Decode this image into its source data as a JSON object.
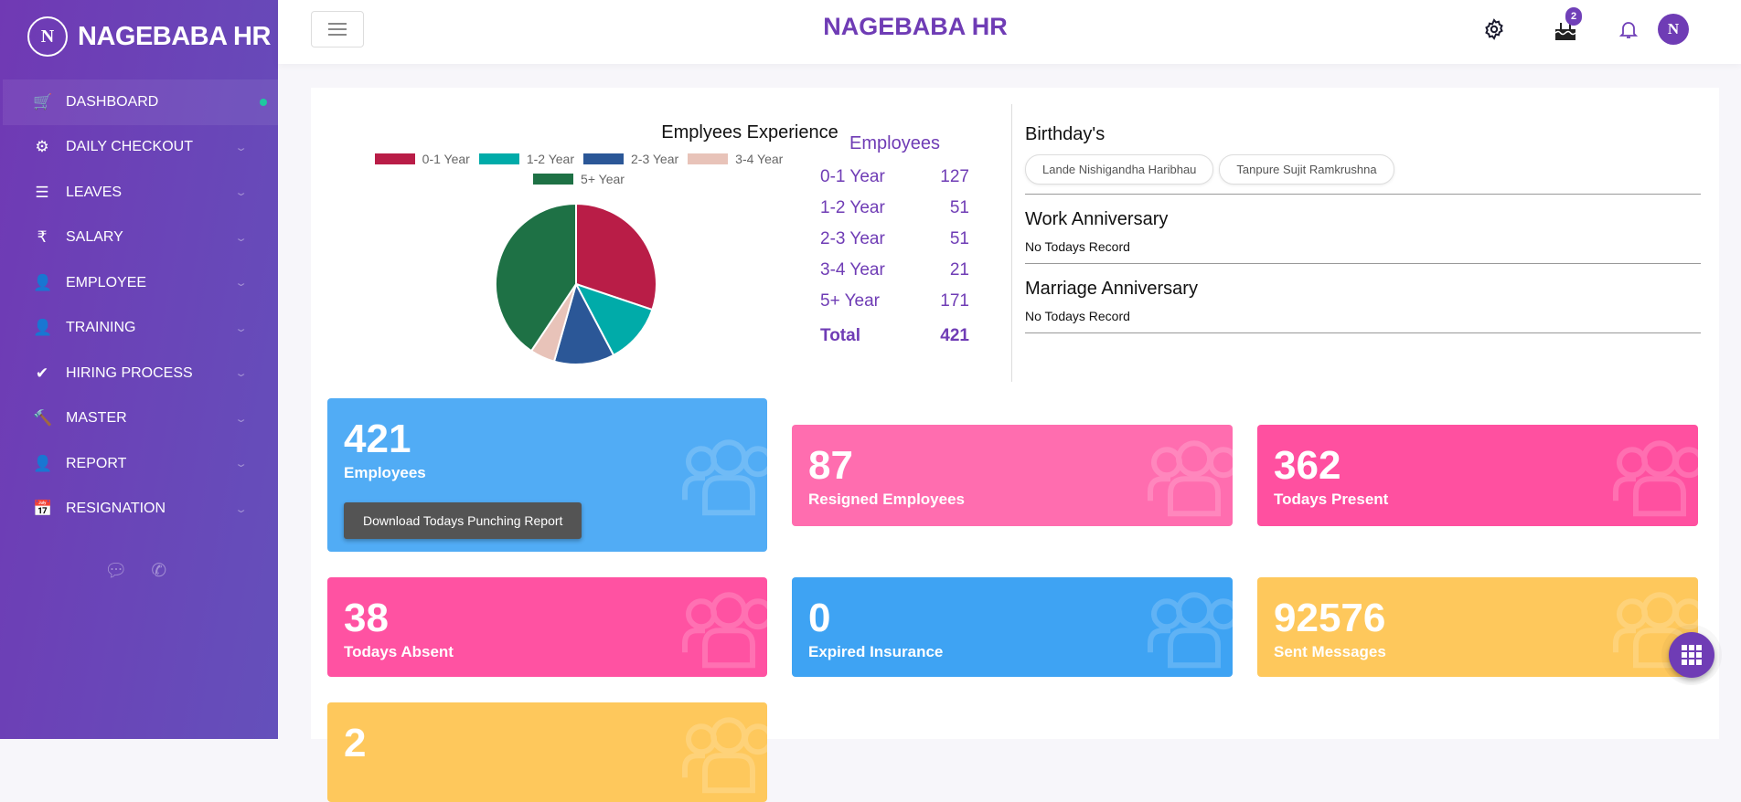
{
  "brand": {
    "name": "NAGEBABA HR",
    "logo_letter": "N"
  },
  "header": {
    "title": "NAGEBABA HR",
    "birthday_badge": "2",
    "avatar_letter": "N"
  },
  "sidebar": {
    "items": [
      {
        "label": "DASHBOARD",
        "icon": "cart-icon",
        "glyph": "🛒"
      },
      {
        "label": "DAILY CHECKOUT",
        "icon": "gear-icon",
        "glyph": "⚙"
      },
      {
        "label": "LEAVES",
        "icon": "list-icon",
        "glyph": "☰"
      },
      {
        "label": "SALARY",
        "icon": "rupee-icon",
        "glyph": "₹"
      },
      {
        "label": "EMPLOYEE",
        "icon": "user-icon",
        "glyph": "👤"
      },
      {
        "label": "TRAINING",
        "icon": "user-icon",
        "glyph": "👤"
      },
      {
        "label": "HIRING PROCESS",
        "icon": "check-icon",
        "glyph": "✔"
      },
      {
        "label": "MASTER",
        "icon": "gavel-icon",
        "glyph": "🔨"
      },
      {
        "label": "REPORT",
        "icon": "user-icon",
        "glyph": "👤"
      },
      {
        "label": "RESIGNATION",
        "icon": "calendar-icon",
        "glyph": "📅"
      }
    ],
    "active": "DASHBOARD"
  },
  "chart_data": {
    "type": "pie",
    "title": "Emplyees Experience",
    "categories": [
      "0-1 Year",
      "1-2 Year",
      "2-3 Year",
      "3-4 Year",
      "5+ Year"
    ],
    "values": [
      127,
      51,
      51,
      21,
      171
    ],
    "colors": [
      "#b91d47",
      "#00aba9",
      "#2b5797",
      "#e8c3b9",
      "#1e7145"
    ],
    "legend": "top"
  },
  "employees": {
    "title": "Employees",
    "rows": [
      {
        "label": "0-1 Year",
        "value": "127"
      },
      {
        "label": "1-2 Year",
        "value": "51"
      },
      {
        "label": "2-3 Year",
        "value": "51"
      },
      {
        "label": "3-4 Year",
        "value": "21"
      },
      {
        "label": "5+ Year",
        "value": "171"
      }
    ],
    "total_label": "Total",
    "total_value": "421"
  },
  "events": {
    "birthdays_title": "Birthday's",
    "birthdays": [
      "Lande Nishigandha Haribhau",
      "Tanpure Sujit Ramkrushna"
    ],
    "work_title": "Work Anniversary",
    "work_text": "No Todays Record",
    "marriage_title": "Marriage Anniversary",
    "marriage_text": "No Todays Record"
  },
  "cards": [
    {
      "value": "421",
      "label": "Employees",
      "color": "#51acf5",
      "button": "Download Todays Punching Report"
    },
    {
      "value": "87",
      "label": "Resigned Employees",
      "color": "#ff6daf"
    },
    {
      "value": "362",
      "label": "Todays Present",
      "color": "#ff50a0"
    },
    {
      "value": "38",
      "label": "Todays Absent",
      "color": "#ff52a2"
    },
    {
      "value": "0",
      "label": "Expired Insurance",
      "color": "#3ea3f3"
    },
    {
      "value": "92576",
      "label": "Sent Messages",
      "color": "#fec85c"
    },
    {
      "value": "2",
      "label": "",
      "color": "#fec85c"
    }
  ]
}
